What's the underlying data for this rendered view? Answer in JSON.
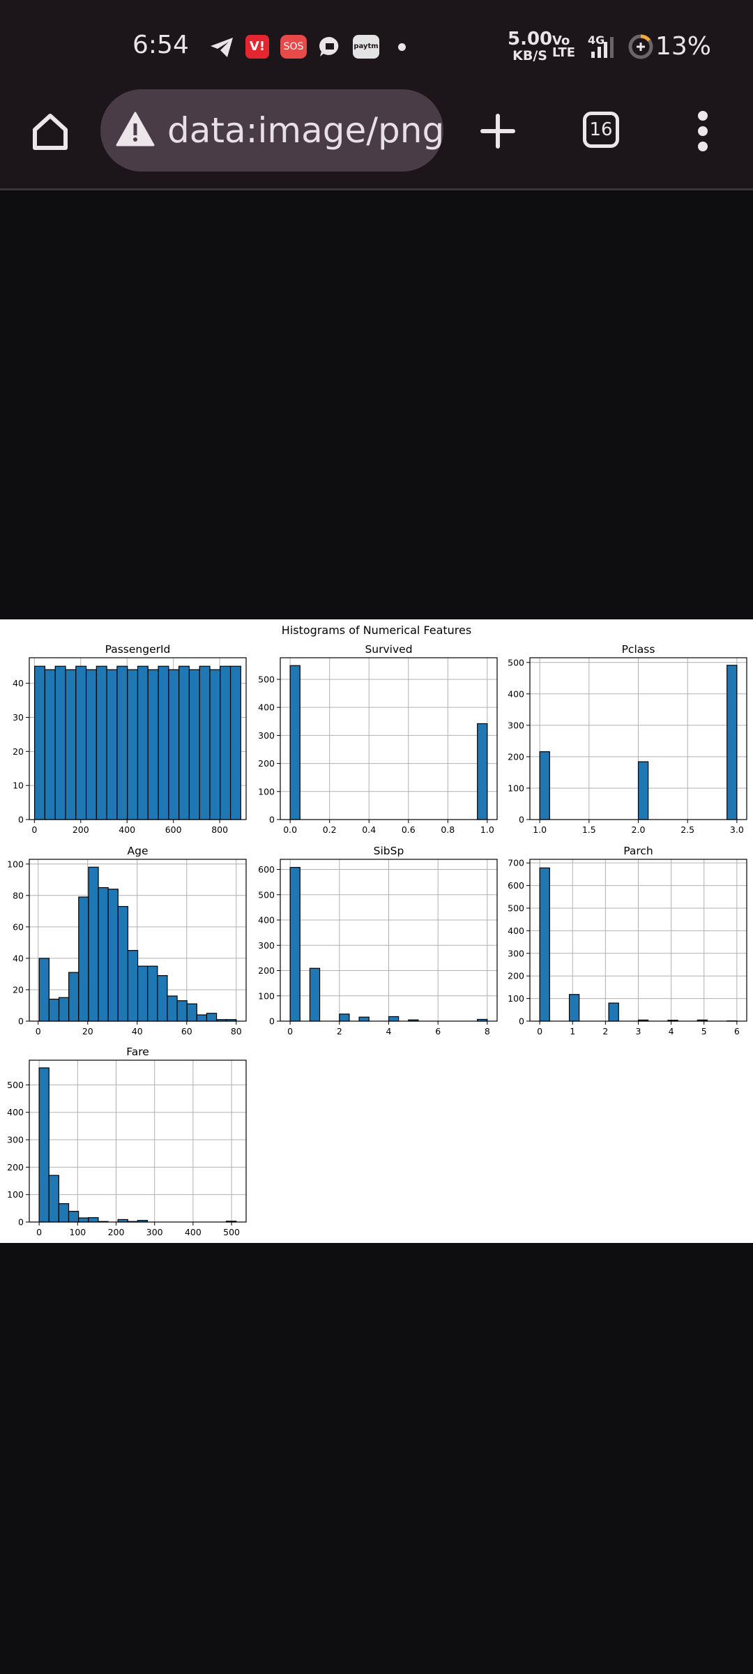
{
  "status_bar": {
    "time": "6:54",
    "net_speed_value": "5.00",
    "net_speed_unit": "KB/S",
    "volte": [
      "Vo",
      "LTE"
    ],
    "network": "4G",
    "battery": "13%",
    "icons": [
      "telegram-icon",
      "vi-app-icon",
      "sos-icon",
      "messaging-icon",
      "paytm-icon",
      "dot-icon",
      "signal-icon",
      "battery-saver-icon"
    ],
    "vi_label": "V!",
    "sos_label": "SOS",
    "paytm_label": "paytm"
  },
  "toolbar": {
    "url": "data:image/png;base64",
    "tab_count": "16",
    "icons": [
      "home-icon",
      "warning-icon",
      "plus-icon",
      "tabs-icon",
      "more-vert-icon"
    ]
  },
  "colors": {
    "bar_fill": "#1f77b4",
    "bar_edge": "#000000",
    "grid": "#b0b0b0"
  },
  "figure": {
    "suptitle": "Histograms of Numerical Features"
  },
  "chart_data": [
    {
      "type": "bar",
      "title": "PassengerId",
      "xlim": [
        -22,
        914
      ],
      "ylim": [
        0,
        47.5
      ],
      "xticks": [
        0,
        200,
        400,
        600,
        800
      ],
      "xtick_labels": [
        "0",
        "200",
        "400",
        "600",
        "800"
      ],
      "yticks": [
        0,
        10,
        20,
        30,
        40
      ],
      "ytick_labels": [
        "0",
        "10",
        "20",
        "30",
        "40"
      ],
      "bin_start": 1,
      "bin_width": 44.5,
      "values": [
        45,
        44,
        45,
        44,
        45,
        44,
        45,
        44,
        45,
        44,
        45,
        44,
        45,
        44,
        45,
        44,
        45,
        44,
        45,
        45
      ]
    },
    {
      "type": "bar",
      "title": "Survived",
      "xlim": [
        -0.05,
        1.05
      ],
      "ylim": [
        0,
        577
      ],
      "xticks": [
        0,
        0.2,
        0.4,
        0.6,
        0.8,
        1.0
      ],
      "xtick_labels": [
        "0.0",
        "0.2",
        "0.4",
        "0.6",
        "0.8",
        "1.0"
      ],
      "yticks": [
        0,
        100,
        200,
        300,
        400,
        500
      ],
      "ytick_labels": [
        "0",
        "100",
        "200",
        "300",
        "400",
        "500"
      ],
      "bin_start": 0,
      "bin_width": 0.05,
      "values": [
        549,
        0,
        0,
        0,
        0,
        0,
        0,
        0,
        0,
        0,
        0,
        0,
        0,
        0,
        0,
        0,
        0,
        0,
        0,
        342
      ]
    },
    {
      "type": "bar",
      "title": "Pclass",
      "xlim": [
        0.9,
        3.1
      ],
      "ylim": [
        0,
        515
      ],
      "xticks": [
        1.0,
        1.5,
        2.0,
        2.5,
        3.0
      ],
      "xtick_labels": [
        "1.0",
        "1.5",
        "2.0",
        "2.5",
        "3.0"
      ],
      "yticks": [
        0,
        100,
        200,
        300,
        400,
        500
      ],
      "ytick_labels": [
        "0",
        "100",
        "200",
        "300",
        "400",
        "500"
      ],
      "bin_start": 1,
      "bin_width": 0.1,
      "values": [
        216,
        0,
        0,
        0,
        0,
        0,
        0,
        0,
        0,
        0,
        184,
        0,
        0,
        0,
        0,
        0,
        0,
        0,
        0,
        491
      ]
    },
    {
      "type": "bar",
      "title": "Age",
      "xlim": [
        -3.6,
        84
      ],
      "ylim": [
        0,
        103
      ],
      "xticks": [
        0,
        20,
        40,
        60,
        80
      ],
      "xtick_labels": [
        "0",
        "20",
        "40",
        "60",
        "80"
      ],
      "yticks": [
        0,
        20,
        40,
        60,
        80,
        100
      ],
      "ytick_labels": [
        "0",
        "20",
        "40",
        "60",
        "80",
        "100"
      ],
      "bin_start": 0.42,
      "bin_width": 3.98,
      "values": [
        40,
        14,
        15,
        31,
        79,
        98,
        85,
        84,
        73,
        45,
        35,
        35,
        29,
        16,
        13,
        11,
        4,
        5,
        1,
        1
      ]
    },
    {
      "type": "bar",
      "title": "SibSp",
      "xlim": [
        -0.4,
        8.4
      ],
      "ylim": [
        0,
        640
      ],
      "xticks": [
        0,
        2,
        4,
        6,
        8
      ],
      "xtick_labels": [
        "0",
        "2",
        "4",
        "6",
        "8"
      ],
      "yticks": [
        0,
        100,
        200,
        300,
        400,
        500,
        600
      ],
      "ytick_labels": [
        "0",
        "100",
        "200",
        "300",
        "400",
        "500",
        "600"
      ],
      "bin_start": 0,
      "bin_width": 0.4,
      "values": [
        608,
        0,
        209,
        0,
        0,
        28,
        0,
        16,
        0,
        0,
        18,
        0,
        5,
        0,
        0,
        0,
        0,
        0,
        0,
        7
      ]
    },
    {
      "type": "bar",
      "title": "Parch",
      "xlim": [
        -0.3,
        6.3
      ],
      "ylim": [
        0,
        716
      ],
      "xticks": [
        0,
        1,
        2,
        3,
        4,
        5,
        6
      ],
      "xtick_labels": [
        "0",
        "1",
        "2",
        "3",
        "4",
        "5",
        "6"
      ],
      "yticks": [
        0,
        100,
        200,
        300,
        400,
        500,
        600,
        700
      ],
      "ytick_labels": [
        "0",
        "100",
        "200",
        "300",
        "400",
        "500",
        "600",
        "700"
      ],
      "bin_start": 0,
      "bin_width": 0.3,
      "values": [
        678,
        0,
        0,
        118,
        0,
        0,
        0,
        80,
        0,
        0,
        5,
        0,
        0,
        4,
        0,
        0,
        5,
        0,
        0,
        1
      ]
    },
    {
      "type": "bar",
      "title": "Fare",
      "xlim": [
        -25.6,
        537.9
      ],
      "ylim": [
        0,
        590
      ],
      "xticks": [
        0,
        100,
        200,
        300,
        400,
        500
      ],
      "xtick_labels": [
        "0",
        "100",
        "200",
        "300",
        "400",
        "500"
      ],
      "yticks": [
        0,
        100,
        200,
        300,
        400,
        500
      ],
      "ytick_labels": [
        "0",
        "100",
        "200",
        "300",
        "400",
        "500"
      ],
      "bin_start": 0,
      "bin_width": 25.6,
      "values": [
        562,
        170,
        67,
        39,
        15,
        16,
        2,
        0,
        9,
        2,
        6,
        0,
        0,
        0,
        0,
        0,
        0,
        0,
        0,
        3
      ]
    }
  ]
}
